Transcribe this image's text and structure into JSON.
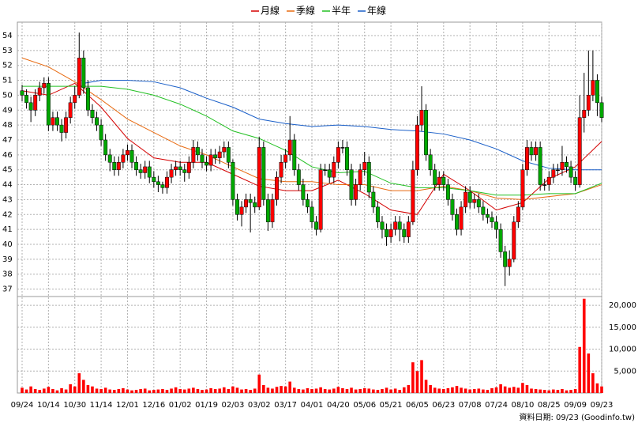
{
  "chart_data": {
    "type": "candlestick",
    "categories": [
      "09/24",
      null,
      null,
      null,
      null,
      null,
      "10/14",
      null,
      null,
      null,
      null,
      null,
      "10/30",
      null,
      null,
      null,
      null,
      null,
      "11/14",
      null,
      null,
      null,
      null,
      null,
      "12/01",
      null,
      null,
      null,
      null,
      null,
      "12/16",
      null,
      null,
      null,
      null,
      null,
      "01/02",
      null,
      null,
      null,
      null,
      null,
      "01/19",
      null,
      null,
      null,
      null,
      null,
      "02/03",
      null,
      null,
      null,
      null,
      null,
      "03/02",
      null,
      null,
      null,
      null,
      null,
      "03/17",
      null,
      null,
      null,
      null,
      null,
      "04/01",
      null,
      null,
      null,
      null,
      null,
      "04/20",
      null,
      null,
      null,
      null,
      null,
      "05/06",
      null,
      null,
      null,
      null,
      null,
      "05/21",
      null,
      null,
      null,
      null,
      null,
      "06/05",
      null,
      null,
      null,
      null,
      null,
      "06/23",
      null,
      null,
      null,
      null,
      null,
      "07/08",
      null,
      null,
      null,
      null,
      null,
      "07/24",
      null,
      null,
      null,
      null,
      null,
      "08/10",
      null,
      null,
      null,
      null,
      null,
      "08/25",
      null,
      null,
      null,
      null,
      null,
      "09/09",
      null,
      null,
      null,
      null,
      null,
      "09/23"
    ],
    "ohlc": [
      [
        50.3,
        50.7,
        49.6,
        50
      ],
      [
        50,
        50.4,
        49.1,
        49.5
      ],
      [
        49.5,
        49.9,
        48.2,
        49
      ],
      [
        49,
        50.4,
        48.6,
        50
      ],
      [
        50,
        50.9,
        49.6,
        50.5
      ],
      [
        50.5,
        51.2,
        50.1,
        50.8
      ],
      [
        50.8,
        51.2,
        47.6,
        48
      ],
      [
        48,
        48.9,
        47.6,
        48.5
      ],
      [
        48.5,
        48.9,
        47.6,
        48
      ],
      [
        48,
        48.4,
        46.9,
        47.5
      ],
      [
        47.5,
        48.9,
        47.1,
        48.5
      ],
      [
        48.5,
        49.9,
        48.1,
        49.5
      ],
      [
        49.5,
        50.6,
        49.1,
        50
      ],
      [
        50,
        54.2,
        49.8,
        52.5
      ],
      [
        52.5,
        53,
        50.1,
        50.5
      ],
      [
        50.5,
        51,
        48.6,
        49
      ],
      [
        49,
        49.4,
        48.1,
        48.5
      ],
      [
        48.5,
        48.9,
        47.6,
        48
      ],
      [
        48,
        48.4,
        46.6,
        47
      ],
      [
        47,
        47.4,
        45.6,
        46
      ],
      [
        46,
        46.4,
        44.9,
        45.5
      ],
      [
        45.5,
        45.9,
        44.6,
        45
      ],
      [
        45,
        45.9,
        44.6,
        45.5
      ],
      [
        45.5,
        46.4,
        45.1,
        46
      ],
      [
        46,
        46.7,
        45.6,
        46.3
      ],
      [
        46.3,
        46.7,
        45.1,
        45.5
      ],
      [
        45.5,
        45.9,
        44.6,
        45
      ],
      [
        45,
        45.4,
        44.4,
        44.8
      ],
      [
        44.8,
        45.6,
        44.4,
        45.2
      ],
      [
        45.2,
        45.6,
        44.1,
        44.5
      ],
      [
        44.5,
        44.9,
        43.8,
        44.2
      ],
      [
        44.2,
        44.6,
        43.5,
        44
      ],
      [
        44,
        44.2,
        43.4,
        43.8
      ],
      [
        43.8,
        44.9,
        43.4,
        44.5
      ],
      [
        44.5,
        45.4,
        44.1,
        45
      ],
      [
        45,
        45.6,
        44.6,
        45.2
      ],
      [
        45.2,
        45.6,
        44.6,
        45
      ],
      [
        45,
        45.4,
        44.2,
        44.8
      ],
      [
        44.8,
        45.9,
        44.4,
        45.5
      ],
      [
        45.5,
        47,
        45.1,
        46.5
      ],
      [
        46.5,
        46.9,
        45.6,
        46
      ],
      [
        46,
        46.4,
        45.1,
        45.5
      ],
      [
        45.5,
        45.9,
        44.9,
        45.3
      ],
      [
        45.3,
        46.4,
        44.9,
        46
      ],
      [
        46,
        46.4,
        45.4,
        45.8
      ],
      [
        45.8,
        46.6,
        45.4,
        46.2
      ],
      [
        46.2,
        46.9,
        45.8,
        46.5
      ],
      [
        46.5,
        46.9,
        45.1,
        45.5
      ],
      [
        45.5,
        45.7,
        42.6,
        43
      ],
      [
        43,
        43.4,
        41.6,
        42
      ],
      [
        42,
        42.9,
        41.2,
        42.5
      ],
      [
        42.5,
        43.4,
        42.1,
        43
      ],
      [
        43,
        43.4,
        40.8,
        42.8
      ],
      [
        42.8,
        43.2,
        42.1,
        42.5
      ],
      [
        42.5,
        47.2,
        42.3,
        46.5
      ],
      [
        46.5,
        46.9,
        42.6,
        43
      ],
      [
        43,
        43.4,
        40.9,
        41.5
      ],
      [
        41.5,
        43.4,
        41.1,
        43
      ],
      [
        43,
        44.9,
        42.6,
        44.5
      ],
      [
        44.5,
        46,
        44.1,
        45.5
      ],
      [
        45.5,
        46.4,
        45.1,
        46
      ],
      [
        46,
        48.6,
        45.6,
        47
      ],
      [
        47,
        47.4,
        44.6,
        45
      ],
      [
        45,
        45.4,
        43.6,
        44
      ],
      [
        44,
        44.4,
        42.6,
        43
      ],
      [
        43,
        43.4,
        42.1,
        42.5
      ],
      [
        42.5,
        42.9,
        41.1,
        41.5
      ],
      [
        41.5,
        41.9,
        40.6,
        41
      ],
      [
        41,
        45.4,
        40.8,
        45
      ],
      [
        45,
        45.4,
        44.6,
        45
      ],
      [
        45,
        45.4,
        44.1,
        44.5
      ],
      [
        44.5,
        45.9,
        44.1,
        45.5
      ],
      [
        45.5,
        46.9,
        45.1,
        46.5
      ],
      [
        46.5,
        47,
        46.1,
        46.5
      ],
      [
        46.5,
        46.9,
        44.6,
        45
      ],
      [
        45,
        45.4,
        42.6,
        43
      ],
      [
        43,
        44.4,
        42.6,
        44
      ],
      [
        44,
        45.4,
        43.6,
        45
      ],
      [
        45,
        46.2,
        44.6,
        45.5
      ],
      [
        45.5,
        45.9,
        43.1,
        43.5
      ],
      [
        43.5,
        43.9,
        42.1,
        42.5
      ],
      [
        42.5,
        42.9,
        41.1,
        41.5
      ],
      [
        41.5,
        41.9,
        40.4,
        41
      ],
      [
        41,
        41.4,
        39.9,
        40.5
      ],
      [
        40.5,
        41.4,
        40.1,
        41
      ],
      [
        41,
        41.9,
        40.6,
        41.5
      ],
      [
        41.5,
        41.9,
        40.2,
        41
      ],
      [
        41,
        41.4,
        40.1,
        40.5
      ],
      [
        40.5,
        41.9,
        40.1,
        41.5
      ],
      [
        41.5,
        45.6,
        41.3,
        45
      ],
      [
        45,
        48.6,
        44.6,
        48
      ],
      [
        48,
        50.6,
        47.6,
        49
      ],
      [
        49,
        49.4,
        45.6,
        46
      ],
      [
        46,
        46.4,
        44.6,
        45
      ],
      [
        45,
        45.4,
        43.6,
        44
      ],
      [
        44,
        44.9,
        43.6,
        44.5
      ],
      [
        44.5,
        44.9,
        43.6,
        44
      ],
      [
        44,
        44.4,
        42.6,
        43
      ],
      [
        43,
        43.4,
        41.6,
        42
      ],
      [
        42,
        42.4,
        40.6,
        41
      ],
      [
        41,
        42.9,
        40.6,
        42.5
      ],
      [
        42.5,
        43.9,
        42.1,
        43.5
      ],
      [
        43.5,
        43.9,
        42.4,
        42.8
      ],
      [
        42.8,
        43.4,
        42.4,
        43
      ],
      [
        43,
        43.4,
        42.1,
        42.5
      ],
      [
        42.5,
        42.9,
        41.6,
        42
      ],
      [
        42,
        42.4,
        41.4,
        41.8
      ],
      [
        41.8,
        42.2,
        41.1,
        41.5
      ],
      [
        41.5,
        41.9,
        40.4,
        41
      ],
      [
        41,
        41.4,
        39.1,
        39.5
      ],
      [
        39.5,
        39.9,
        37.2,
        38.5
      ],
      [
        38.5,
        39.6,
        37.9,
        39
      ],
      [
        39,
        41.9,
        38.8,
        41.5
      ],
      [
        41.5,
        42.9,
        41.1,
        42.5
      ],
      [
        42.5,
        45.4,
        42.3,
        45
      ],
      [
        45,
        47,
        44.6,
        46.5
      ],
      [
        46.5,
        46.9,
        45.6,
        46
      ],
      [
        46,
        46.9,
        45.6,
        46.5
      ],
      [
        46.5,
        46.9,
        43.6,
        44
      ],
      [
        44,
        44.4,
        43.6,
        44
      ],
      [
        44,
        44.9,
        43.6,
        44.5
      ],
      [
        44.5,
        45.4,
        44.1,
        45
      ],
      [
        45,
        45.4,
        44.6,
        45
      ],
      [
        45,
        46.6,
        44.6,
        45.5
      ],
      [
        45.5,
        45.9,
        44.8,
        45.2
      ],
      [
        45.2,
        45.6,
        44.1,
        44.5
      ],
      [
        44.5,
        44.9,
        43.6,
        44
      ],
      [
        44,
        50,
        43.8,
        48.5
      ],
      [
        48.5,
        51.5,
        47.5,
        49
      ],
      [
        49,
        53,
        48.6,
        50
      ],
      [
        50,
        53,
        49.6,
        51
      ],
      [
        51,
        51.4,
        48.6,
        49.5
      ],
      [
        49.5,
        49.9,
        48.2,
        48.5
      ]
    ],
    "volume": [
      1200,
      800,
      1500,
      900,
      700,
      1000,
      1400,
      900,
      600,
      1100,
      800,
      2000,
      1500,
      4500,
      3000,
      1800,
      1500,
      1000,
      900,
      1200,
      800,
      700,
      900,
      1100,
      800,
      600,
      700,
      900,
      1000,
      600,
      700,
      800,
      900,
      700,
      1000,
      1300,
      900,
      800,
      1000,
      1200,
      900,
      700,
      800,
      1100,
      900,
      1000,
      1300,
      900,
      1500,
      1200,
      800,
      900,
      700,
      1000,
      4200,
      1800,
      1200,
      1000,
      1400,
      1600,
      1500,
      2600,
      1200,
      900,
      800,
      1100,
      900,
      1000,
      1300,
      900,
      800,
      1000,
      1400,
      1100,
      900,
      1200,
      800,
      900,
      1100,
      1000,
      800,
      700,
      900,
      1200,
      800,
      1000,
      700,
      1300,
      1800,
      7000,
      5000,
      7500,
      3000,
      1800,
      1200,
      1000,
      900,
      1100,
      1300,
      1600,
      1200,
      1000,
      800,
      900,
      1000,
      800,
      700,
      1100,
      1300,
      2000,
      1500,
      1200,
      1400,
      1200,
      2300,
      1800,
      1000,
      900,
      800,
      700,
      600,
      800,
      700,
      900,
      600,
      700,
      900,
      10500,
      21500,
      9000,
      4500,
      2200,
      1500
    ],
    "series": [
      {
        "name": "月線",
        "color": "#d40000",
        "x": [
          0,
          6,
          12,
          18,
          24,
          30,
          36,
          42,
          48,
          54,
          60,
          66,
          72,
          78,
          84,
          90,
          96,
          102,
          108,
          114,
          120,
          126,
          132
        ],
        "values": [
          50.3,
          50,
          50.8,
          49.2,
          47.1,
          45.8,
          45.5,
          45.5,
          44.7,
          43.9,
          43.6,
          43.6,
          44.3,
          43.4,
          42.3,
          42,
          44.7,
          43.6,
          42.3,
          42.8,
          44.4,
          45.2,
          46.9
        ]
      },
      {
        "name": "季線",
        "color": "#e86a10",
        "x": [
          0,
          6,
          12,
          18,
          24,
          30,
          36,
          42,
          48,
          54,
          60,
          66,
          72,
          78,
          84,
          90,
          96,
          102,
          108,
          114,
          120,
          126,
          132
        ],
        "values": [
          52.5,
          51.9,
          50.9,
          49.7,
          48.4,
          47.5,
          46.6,
          46,
          45.2,
          44.4,
          44.2,
          44.2,
          44,
          44,
          43.6,
          43.6,
          43.9,
          43.6,
          43.1,
          43,
          43.2,
          43.4,
          44
        ]
      },
      {
        "name": "半年",
        "color": "#22c022",
        "x": [
          0,
          6,
          12,
          18,
          24,
          30,
          36,
          42,
          48,
          54,
          60,
          66,
          72,
          78,
          84,
          90,
          96,
          102,
          108,
          114,
          120,
          126,
          132
        ],
        "values": [
          50.6,
          50.6,
          50.6,
          50.6,
          50.4,
          50,
          49.4,
          48.6,
          47.6,
          47.1,
          46.3,
          45.2,
          44.8,
          44.9,
          44.1,
          43.8,
          43.8,
          43.6,
          43.3,
          43.3,
          43.4,
          43.4,
          44.1
        ]
      },
      {
        "name": "年線",
        "color": "#1a5fc8",
        "x": [
          14,
          18,
          24,
          30,
          36,
          42,
          48,
          54,
          60,
          66,
          72,
          78,
          84,
          90,
          96,
          102,
          108,
          114,
          120,
          126,
          132
        ],
        "values": [
          50.8,
          51,
          51,
          50.9,
          50.5,
          49.8,
          49.2,
          48.4,
          48.1,
          47.9,
          48,
          47.9,
          47.7,
          47.6,
          47.4,
          47,
          46.4,
          45.6,
          45.1,
          45,
          45
        ]
      }
    ],
    "up_color": "#ff0000",
    "down_color": "#00a800",
    "volume_color": "#ff0000",
    "ylim": [
      36.5,
      54.9
    ],
    "yticks": [
      37,
      38,
      39,
      40,
      41,
      42,
      43,
      44,
      45,
      46,
      47,
      48,
      49,
      50,
      51,
      52,
      53,
      54
    ],
    "y2lim": [
      0,
      22000
    ],
    "y2ticks": [
      {
        "value": 5000,
        "label": "5,000"
      },
      {
        "value": 10000,
        "label": "10,000"
      },
      {
        "value": 15000,
        "label": "15,000"
      },
      {
        "value": 20000,
        "label": "20,000"
      }
    ],
    "grid": true,
    "footer": "資料日期: 09/23 (Goodinfo.tw)"
  }
}
